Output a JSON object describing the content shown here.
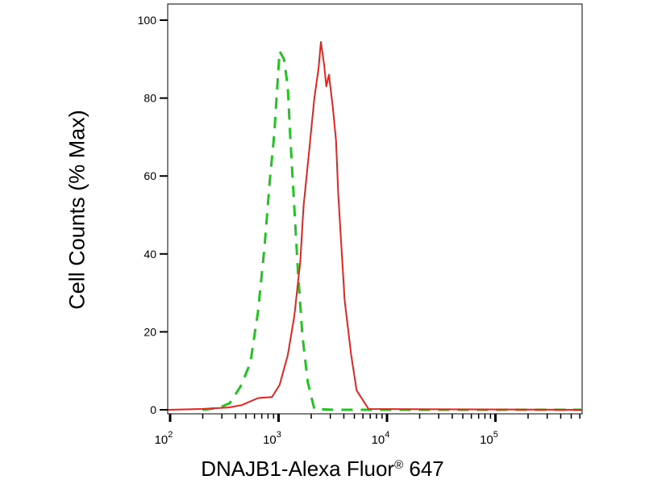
{
  "chart_data": {
    "type": "line",
    "title": "",
    "xlabel_main": "DNAJB1-Alexa Fluor",
    "xlabel_reg": "®",
    "xlabel_tail": " 647",
    "ylabel": "Cell Counts (% Max)",
    "x_scale": "log",
    "xlim": [
      95,
      630000
    ],
    "ylim": [
      0,
      100
    ],
    "y_ticks": [
      "0",
      "20",
      "40",
      "60",
      "80",
      "100"
    ],
    "x_ticks": [
      {
        "base": "10",
        "exp": "2"
      },
      {
        "base": "10",
        "exp": "3"
      },
      {
        "base": "10",
        "exp": "4"
      },
      {
        "base": "10",
        "exp": "5"
      }
    ],
    "grid": false,
    "series": [
      {
        "style": "dashed",
        "color": "#22c322",
        "log10x": [
          2.3,
          2.45,
          2.55,
          2.65,
          2.74,
          2.81,
          2.87,
          2.92,
          2.96,
          2.996,
          3.01,
          3.05,
          3.085,
          3.11,
          3.145,
          3.18,
          3.22,
          3.27,
          3.33,
          3.5,
          5.8
        ],
        "y": [
          0,
          0.5,
          1.7,
          6,
          12,
          25,
          41.6,
          59,
          70.6,
          86.5,
          92,
          90,
          83,
          69,
          52,
          35,
          19,
          7,
          0.2,
          0,
          0
        ]
      },
      {
        "style": "solid",
        "color": "#e8231e",
        "log10x": [
          1.98,
          2.29,
          2.54,
          2.66,
          2.81,
          2.94,
          3.01,
          3.085,
          3.145,
          3.2,
          3.23,
          3.28,
          3.33,
          3.37,
          3.39,
          3.42,
          3.44,
          3.465,
          3.5,
          3.53,
          3.55,
          3.58,
          3.61,
          3.67,
          3.72,
          3.83,
          5.8
        ],
        "y": [
          0,
          0.2,
          0.6,
          1.2,
          3,
          3.3,
          6.4,
          14,
          24,
          38,
          52,
          66,
          80,
          88,
          94.4,
          88.6,
          83,
          86,
          77.6,
          69,
          55.5,
          41.6,
          28,
          14,
          5,
          0.2,
          0
        ]
      }
    ]
  }
}
